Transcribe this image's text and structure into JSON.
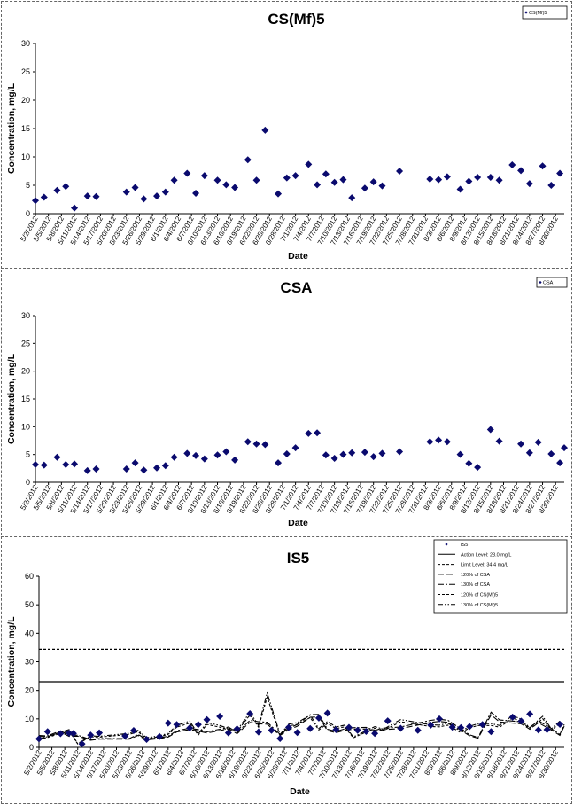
{
  "chart_data": [
    {
      "type": "scatter",
      "title": "CS(Mf)5",
      "ylabel": "Concentration, mg/L",
      "xlabel": "Date",
      "ylim": [
        0,
        30
      ],
      "yticks": [
        0,
        5,
        10,
        15,
        20,
        25,
        30
      ],
      "xlim": [
        "2012-05-02",
        "2012-09-01"
      ],
      "xtick_labels": [
        "5/2/2012",
        "5/5/2012",
        "5/8/2012",
        "5/11/2012",
        "5/14/2012",
        "5/17/2012",
        "5/20/2012",
        "5/23/2012",
        "5/26/2012",
        "5/29/2012",
        "6/1/2012",
        "6/4/2012",
        "6/7/2012",
        "6/10/2012",
        "6/13/2012",
        "6/16/2012",
        "6/19/2012",
        "6/22/2012",
        "6/25/2012",
        "6/28/2012",
        "7/1/2012",
        "7/4/2012",
        "7/7/2012",
        "7/10/2012",
        "7/13/2012",
        "7/16/2012",
        "7/19/2012",
        "7/22/2012",
        "7/25/2012",
        "7/28/2012",
        "7/31/2012",
        "8/3/2012",
        "8/6/2012",
        "8/9/2012",
        "8/12/2012",
        "8/15/2012",
        "8/18/2012",
        "8/21/2012",
        "8/24/2012",
        "8/27/2012",
        "8/30/2012"
      ],
      "legend": [
        "CS(Mf)5"
      ],
      "legend_position": "top-right",
      "colors": {
        "marker": "#0a0a6e"
      },
      "series": [
        {
          "name": "CS(Mf)5",
          "marker": "diamond",
          "points": [
            [
              "2012-05-02",
              2.3
            ],
            [
              "2012-05-04",
              2.9
            ],
            [
              "2012-05-07",
              4.1
            ],
            [
              "2012-05-09",
              4.8
            ],
            [
              "2012-05-11",
              1.0
            ],
            [
              "2012-05-14",
              3.1
            ],
            [
              "2012-05-16",
              3.0
            ],
            [
              "2012-05-23",
              3.8
            ],
            [
              "2012-05-25",
              4.6
            ],
            [
              "2012-05-27",
              2.6
            ],
            [
              "2012-05-30",
              3.1
            ],
            [
              "2012-06-01",
              3.8
            ],
            [
              "2012-06-03",
              5.9
            ],
            [
              "2012-06-06",
              7.1
            ],
            [
              "2012-06-08",
              3.6
            ],
            [
              "2012-06-10",
              6.7
            ],
            [
              "2012-06-13",
              5.9
            ],
            [
              "2012-06-15",
              5.1
            ],
            [
              "2012-06-17",
              4.6
            ],
            [
              "2012-06-20",
              9.5
            ],
            [
              "2012-06-22",
              5.9
            ],
            [
              "2012-06-24",
              14.7
            ],
            [
              "2012-06-27",
              3.5
            ],
            [
              "2012-06-29",
              6.3
            ],
            [
              "2012-07-01",
              6.7
            ],
            [
              "2012-07-04",
              8.7
            ],
            [
              "2012-07-06",
              5.1
            ],
            [
              "2012-07-08",
              7.0
            ],
            [
              "2012-07-10",
              5.5
            ],
            [
              "2012-07-12",
              6.0
            ],
            [
              "2012-07-14",
              2.8
            ],
            [
              "2012-07-17",
              4.5
            ],
            [
              "2012-07-19",
              5.6
            ],
            [
              "2012-07-21",
              4.9
            ],
            [
              "2012-07-25",
              7.5
            ],
            [
              "2012-08-01",
              6.1
            ],
            [
              "2012-08-03",
              6.0
            ],
            [
              "2012-08-05",
              6.5
            ],
            [
              "2012-08-08",
              4.3
            ],
            [
              "2012-08-10",
              5.7
            ],
            [
              "2012-08-12",
              6.4
            ],
            [
              "2012-08-15",
              6.4
            ],
            [
              "2012-08-17",
              5.9
            ],
            [
              "2012-08-20",
              8.6
            ],
            [
              "2012-08-22",
              7.6
            ],
            [
              "2012-08-24",
              5.3
            ],
            [
              "2012-08-27",
              8.4
            ],
            [
              "2012-08-29",
              5.0
            ],
            [
              "2012-08-31",
              7.1
            ]
          ]
        }
      ]
    },
    {
      "type": "scatter",
      "title": "CSA",
      "ylabel": "Concentration, mg/L",
      "xlabel": "Date",
      "ylim": [
        0,
        30
      ],
      "yticks": [
        0,
        5,
        10,
        15,
        20,
        25,
        30
      ],
      "xlim": [
        "2012-05-02",
        "2012-09-01"
      ],
      "xtick_labels": [
        "5/2/2012",
        "5/5/2012",
        "5/8/2012",
        "5/11/2012",
        "5/14/2012",
        "5/17/2012",
        "5/20/2012",
        "5/23/2012",
        "5/26/2012",
        "5/29/2012",
        "6/1/2012",
        "6/4/2012",
        "6/7/2012",
        "6/10/2012",
        "6/13/2012",
        "6/16/2012",
        "6/19/2012",
        "6/22/2012",
        "6/25/2012",
        "6/28/2012",
        "7/1/2012",
        "7/4/2012",
        "7/7/2012",
        "7/10/2012",
        "7/13/2012",
        "7/16/2012",
        "7/19/2012",
        "7/22/2012",
        "7/25/2012",
        "7/28/2012",
        "7/31/2012",
        "8/3/2012",
        "8/6/2012",
        "8/9/2012",
        "8/12/2012",
        "8/15/2012",
        "8/18/2012",
        "8/21/2012",
        "8/24/2012",
        "8/27/2012",
        "8/30/2012"
      ],
      "legend": [
        "CSA"
      ],
      "legend_position": "top-right",
      "colors": {
        "marker": "#0a0a6e"
      },
      "series": [
        {
          "name": "CSA",
          "marker": "diamond",
          "points": [
            [
              "2012-05-02",
              3.2
            ],
            [
              "2012-05-04",
              3.1
            ],
            [
              "2012-05-07",
              4.5
            ],
            [
              "2012-05-09",
              3.2
            ],
            [
              "2012-05-11",
              3.3
            ],
            [
              "2012-05-14",
              2.1
            ],
            [
              "2012-05-16",
              2.4
            ],
            [
              "2012-05-23",
              2.4
            ],
            [
              "2012-05-25",
              3.5
            ],
            [
              "2012-05-27",
              2.2
            ],
            [
              "2012-05-30",
              2.6
            ],
            [
              "2012-06-01",
              3.0
            ],
            [
              "2012-06-03",
              4.5
            ],
            [
              "2012-06-06",
              5.2
            ],
            [
              "2012-06-08",
              4.8
            ],
            [
              "2012-06-10",
              4.2
            ],
            [
              "2012-06-13",
              4.9
            ],
            [
              "2012-06-15",
              5.5
            ],
            [
              "2012-06-17",
              4.0
            ],
            [
              "2012-06-20",
              7.3
            ],
            [
              "2012-06-22",
              6.9
            ],
            [
              "2012-06-24",
              6.8
            ],
            [
              "2012-06-27",
              3.5
            ],
            [
              "2012-06-29",
              5.1
            ],
            [
              "2012-07-01",
              6.2
            ],
            [
              "2012-07-04",
              8.8
            ],
            [
              "2012-07-06",
              8.9
            ],
            [
              "2012-07-08",
              4.9
            ],
            [
              "2012-07-10",
              4.3
            ],
            [
              "2012-07-12",
              5.0
            ],
            [
              "2012-07-14",
              5.3
            ],
            [
              "2012-07-17",
              5.4
            ],
            [
              "2012-07-19",
              4.6
            ],
            [
              "2012-07-21",
              5.2
            ],
            [
              "2012-07-25",
              5.5
            ],
            [
              "2012-08-01",
              7.3
            ],
            [
              "2012-08-03",
              7.6
            ],
            [
              "2012-08-05",
              7.3
            ],
            [
              "2012-08-08",
              5.0
            ],
            [
              "2012-08-10",
              3.4
            ],
            [
              "2012-08-12",
              2.7
            ],
            [
              "2012-08-15",
              9.5
            ],
            [
              "2012-08-17",
              7.4
            ],
            [
              "2012-08-22",
              6.9
            ],
            [
              "2012-08-24",
              5.3
            ],
            [
              "2012-08-26",
              7.2
            ],
            [
              "2012-08-29",
              5.1
            ],
            [
              "2012-08-31",
              3.5
            ],
            [
              "2012-09-01",
              6.2
            ]
          ]
        }
      ]
    },
    {
      "type": "line",
      "title": "IS5",
      "ylabel": "Concentration, mg/L",
      "xlabel": "Date",
      "ylim": [
        0,
        60
      ],
      "yticks": [
        0,
        10,
        20,
        30,
        40,
        50,
        60
      ],
      "xlim": [
        "2012-05-02",
        "2012-09-01"
      ],
      "xtick_labels": [
        "5/2/2012",
        "5/5/2012",
        "5/8/2012",
        "5/11/2012",
        "5/14/2012",
        "5/17/2012",
        "5/20/2012",
        "5/23/2012",
        "5/26/2012",
        "5/29/2012",
        "6/1/2012",
        "6/4/2012",
        "6/7/2012",
        "6/10/2012",
        "6/13/2012",
        "6/16/2012",
        "6/19/2012",
        "6/22/2012",
        "6/25/2012",
        "6/28/2012",
        "7/1/2012",
        "7/4/2012",
        "7/7/2012",
        "7/10/2012",
        "7/13/2012",
        "7/16/2012",
        "7/19/2012",
        "7/22/2012",
        "7/25/2012",
        "7/28/2012",
        "7/31/2012",
        "8/3/2012",
        "8/6/2012",
        "8/9/2012",
        "8/12/2012",
        "8/15/2012",
        "8/18/2012",
        "8/21/2012",
        "8/24/2012",
        "8/27/2012",
        "8/30/2012"
      ],
      "legend": [
        "IS5",
        "Action Level: 23.0 mg/L",
        "Limit Level: 34.4 mg/L",
        "120% of CSA",
        "130% of CSA",
        "120% of CS(Mf)5",
        "130% of CS(Mf)5"
      ],
      "legend_position": "top-right",
      "colors": {
        "marker": "#0a0a6e",
        "lines": "#000000"
      },
      "hlines": [
        {
          "name": "Action Level: 23.0 mg/L",
          "value": 23.0,
          "style": "solid"
        },
        {
          "name": "Limit Level: 34.4 mg/L",
          "value": 34.4,
          "style": "dashed"
        }
      ],
      "derived_lines": [
        {
          "name": "120% of CSA",
          "source": "CSA",
          "factor": 1.2,
          "style": "long-dash"
        },
        {
          "name": "130% of CSA",
          "source": "CSA",
          "factor": 1.3,
          "style": "dash-dot"
        },
        {
          "name": "120% of CS(Mf)5",
          "source": "CS(Mf)5",
          "factor": 1.2,
          "style": "dashed"
        },
        {
          "name": "130% of CS(Mf)5",
          "source": "CS(Mf)5",
          "factor": 1.3,
          "style": "dash-dot-dot"
        }
      ],
      "series": [
        {
          "name": "IS5",
          "marker": "diamond",
          "points": [
            [
              "2012-05-02",
              3.0
            ],
            [
              "2012-05-04",
              5.5
            ],
            [
              "2012-05-07",
              4.8
            ],
            [
              "2012-05-09",
              5.0
            ],
            [
              "2012-05-10",
              4.9
            ],
            [
              "2012-05-12",
              1.2
            ],
            [
              "2012-05-14",
              4.3
            ],
            [
              "2012-05-16",
              5.1
            ],
            [
              "2012-05-22",
              4.0
            ],
            [
              "2012-05-24",
              5.9
            ],
            [
              "2012-05-27",
              2.8
            ],
            [
              "2012-05-30",
              3.8
            ],
            [
              "2012-06-01",
              8.5
            ],
            [
              "2012-06-03",
              8.0
            ],
            [
              "2012-06-06",
              6.8
            ],
            [
              "2012-06-08",
              8.0
            ],
            [
              "2012-06-10",
              9.7
            ],
            [
              "2012-06-13",
              10.9
            ],
            [
              "2012-06-15",
              5.1
            ],
            [
              "2012-06-17",
              6.5
            ],
            [
              "2012-06-20",
              11.8
            ],
            [
              "2012-06-22",
              5.4
            ],
            [
              "2012-06-25",
              6.0
            ],
            [
              "2012-06-27",
              3.1
            ],
            [
              "2012-06-29",
              7.0
            ],
            [
              "2012-07-01",
              5.2
            ],
            [
              "2012-07-04",
              6.6
            ],
            [
              "2012-07-06",
              10.3
            ],
            [
              "2012-07-08",
              12.0
            ],
            [
              "2012-07-10",
              6.2
            ],
            [
              "2012-07-13",
              7.0
            ],
            [
              "2012-07-15",
              6.0
            ],
            [
              "2012-07-17",
              5.6
            ],
            [
              "2012-07-19",
              4.9
            ],
            [
              "2012-07-22",
              9.3
            ],
            [
              "2012-07-25",
              6.7
            ],
            [
              "2012-07-29",
              6.0
            ],
            [
              "2012-08-01",
              7.8
            ],
            [
              "2012-08-03",
              10.0
            ],
            [
              "2012-08-06",
              7.1
            ],
            [
              "2012-08-08",
              6.9
            ],
            [
              "2012-08-10",
              7.3
            ],
            [
              "2012-08-13",
              8.0
            ],
            [
              "2012-08-15",
              5.5
            ],
            [
              "2012-08-20",
              10.6
            ],
            [
              "2012-08-22",
              9.2
            ],
            [
              "2012-08-24",
              11.7
            ],
            [
              "2012-08-26",
              6.1
            ],
            [
              "2012-08-28",
              6.2
            ],
            [
              "2012-08-31",
              8.1
            ]
          ]
        }
      ]
    }
  ]
}
